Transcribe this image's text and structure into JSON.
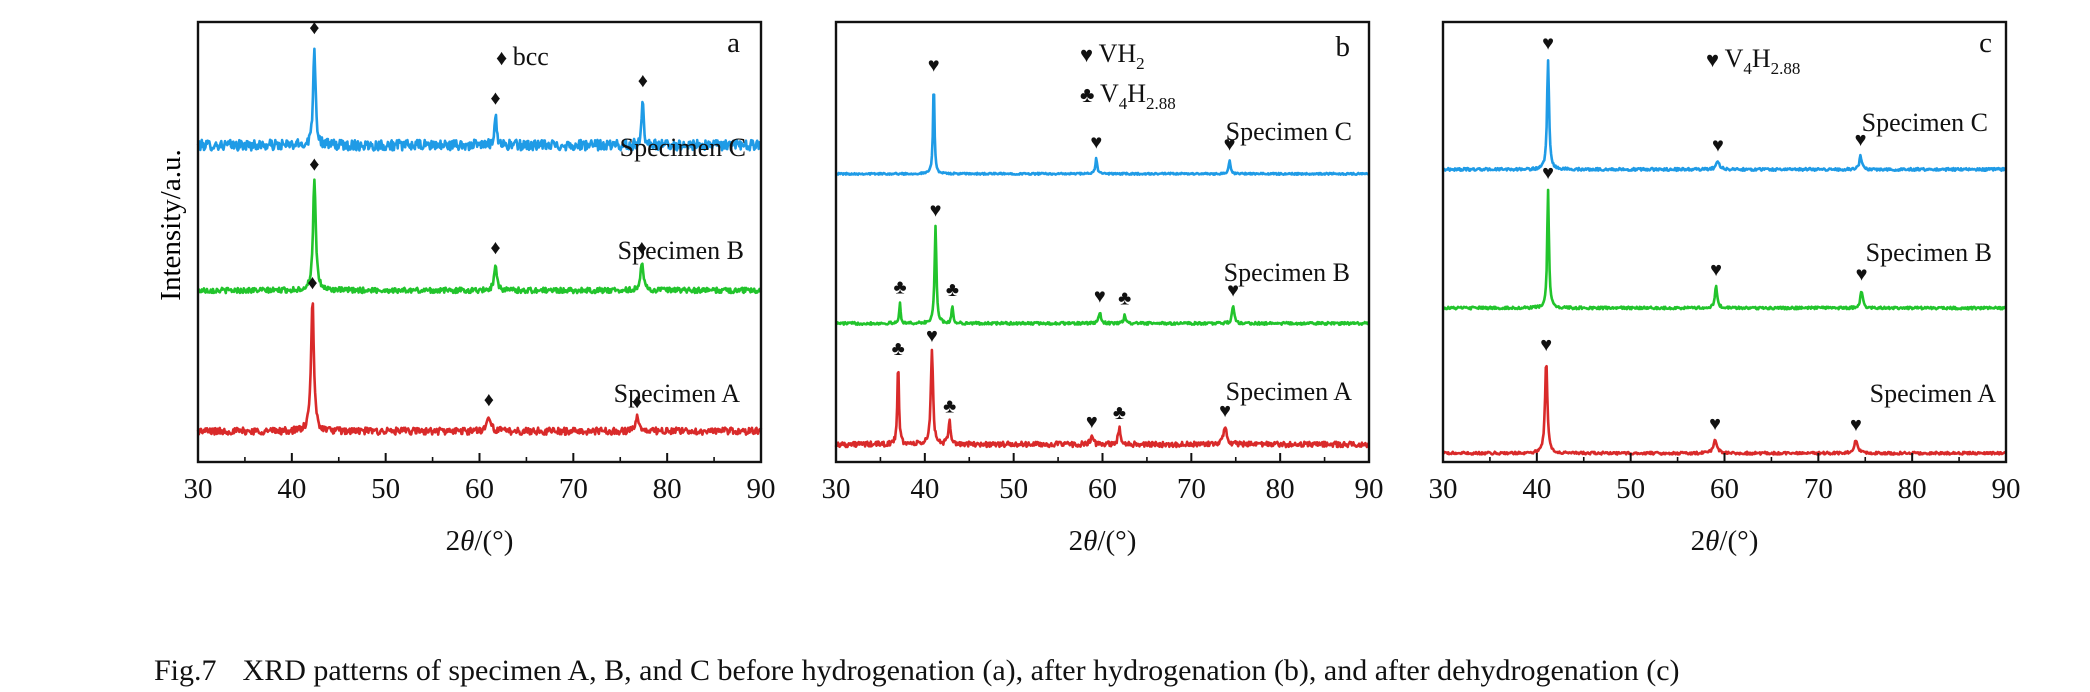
{
  "figure": {
    "ylabel": "Intensity/a.u.",
    "caption_number": "Fig.7",
    "caption_text": "XRD patterns of specimen A, B, and C before hydrogenation (a), after hydrogenation (b), and after dehydrogenation (c)"
  },
  "colors": {
    "A": "#d92a2a",
    "B": "#22c42c",
    "C": "#1f9be6",
    "axis": "#111111"
  },
  "chart_data": [
    {
      "type": "line",
      "panel_label": "a",
      "xlabel": "2θ/(°)",
      "ylabel": "Intensity/a.u.",
      "xlim": [
        30,
        90
      ],
      "xticks": [
        30,
        40,
        50,
        60,
        70,
        80,
        90
      ],
      "ylim": [
        0,
        1
      ],
      "legend": [
        {
          "symbol": "♦",
          "text": "bcc"
        }
      ],
      "series": [
        {
          "name": "Specimen C",
          "color": "#1f9be6",
          "baseline": 0.72,
          "noise": 0.012,
          "peaks": [
            {
              "x": 42.4,
              "height": 0.23,
              "width": 0.3,
              "marker": "♦"
            },
            {
              "x": 61.7,
              "height": 0.07,
              "width": 0.3,
              "marker": "♦"
            },
            {
              "x": 77.4,
              "height": 0.11,
              "width": 0.25,
              "marker": "♦"
            }
          ]
        },
        {
          "name": "Specimen B",
          "color": "#22c42c",
          "baseline": 0.39,
          "noise": 0.006,
          "peaks": [
            {
              "x": 42.4,
              "height": 0.25,
              "width": 0.35,
              "marker": "♦"
            },
            {
              "x": 61.7,
              "height": 0.06,
              "width": 0.35,
              "marker": "♦"
            },
            {
              "x": 77.3,
              "height": 0.06,
              "width": 0.4,
              "marker": "♦"
            }
          ]
        },
        {
          "name": "Specimen A",
          "color": "#d92a2a",
          "baseline": 0.07,
          "noise": 0.008,
          "peaks": [
            {
              "x": 42.2,
              "height": 0.3,
              "width": 0.35,
              "marker": "♦"
            },
            {
              "x": 61.0,
              "height": 0.035,
              "width": 0.5,
              "marker": "♦"
            },
            {
              "x": 76.8,
              "height": 0.03,
              "width": 0.5,
              "marker": "♦"
            }
          ]
        }
      ]
    },
    {
      "type": "line",
      "panel_label": "b",
      "xlabel": "2θ/(°)",
      "ylabel": "",
      "xlim": [
        30,
        90
      ],
      "xticks": [
        30,
        40,
        50,
        60,
        70,
        80,
        90
      ],
      "ylim": [
        0,
        1
      ],
      "legend": [
        {
          "symbol": "♥",
          "text": "VH",
          "sub": "2",
          "text2": "",
          "sub2": ""
        },
        {
          "symbol": "♣",
          "text": "V",
          "sub": "4",
          "text2": "H",
          "sub2": "2.88"
        }
      ],
      "series": [
        {
          "name": "Specimen C",
          "color": "#1f9be6",
          "baseline": 0.655,
          "noise": 0.002,
          "peaks": [
            {
              "x": 41.0,
              "height": 0.21,
              "width": 0.2,
              "marker": "♥"
            },
            {
              "x": 59.3,
              "height": 0.035,
              "width": 0.25,
              "marker": "♥"
            },
            {
              "x": 74.3,
              "height": 0.03,
              "width": 0.25,
              "marker": "♥"
            }
          ]
        },
        {
          "name": "Specimen B",
          "color": "#22c42c",
          "baseline": 0.315,
          "noise": 0.003,
          "peaks": [
            {
              "x": 37.2,
              "height": 0.045,
              "width": 0.2,
              "marker": "♣"
            },
            {
              "x": 41.2,
              "height": 0.22,
              "width": 0.25,
              "marker": "♥"
            },
            {
              "x": 43.1,
              "height": 0.04,
              "width": 0.2,
              "marker": "♣"
            },
            {
              "x": 59.7,
              "height": 0.025,
              "width": 0.3,
              "marker": "♥"
            },
            {
              "x": 62.5,
              "height": 0.02,
              "width": 0.25,
              "marker": "♣"
            },
            {
              "x": 74.7,
              "height": 0.038,
              "width": 0.3,
              "marker": "♥"
            }
          ]
        },
        {
          "name": "Specimen A",
          "color": "#d92a2a",
          "baseline": 0.04,
          "noise": 0.006,
          "peaks": [
            {
              "x": 37.0,
              "height": 0.18,
              "width": 0.22,
              "marker": "♣"
            },
            {
              "x": 40.8,
              "height": 0.21,
              "width": 0.3,
              "marker": "♥"
            },
            {
              "x": 42.8,
              "height": 0.05,
              "width": 0.3,
              "marker": "♣"
            },
            {
              "x": 58.8,
              "height": 0.015,
              "width": 0.4,
              "marker": "♥"
            },
            {
              "x": 61.9,
              "height": 0.035,
              "width": 0.35,
              "marker": "♣"
            },
            {
              "x": 73.8,
              "height": 0.04,
              "width": 0.45,
              "marker": "♥"
            }
          ]
        }
      ]
    },
    {
      "type": "line",
      "panel_label": "c",
      "xlabel": "2θ/(°)",
      "ylabel": "",
      "xlim": [
        30,
        90
      ],
      "xticks": [
        30,
        40,
        50,
        60,
        70,
        80,
        90
      ],
      "ylim": [
        0,
        1
      ],
      "legend": [
        {
          "symbol": "♥",
          "text": "V",
          "sub": "4",
          "text2": "H",
          "sub2": "2.88"
        }
      ],
      "series": [
        {
          "name": "Specimen C",
          "color": "#1f9be6",
          "baseline": 0.665,
          "noise": 0.003,
          "peaks": [
            {
              "x": 41.2,
              "height": 0.25,
              "width": 0.25,
              "marker": "♥"
            },
            {
              "x": 59.3,
              "height": 0.018,
              "width": 0.45,
              "marker": "♥"
            },
            {
              "x": 74.5,
              "height": 0.03,
              "width": 0.3,
              "marker": "♥"
            }
          ]
        },
        {
          "name": "Specimen B",
          "color": "#22c42c",
          "baseline": 0.35,
          "noise": 0.003,
          "peaks": [
            {
              "x": 41.2,
              "height": 0.27,
              "width": 0.22,
              "marker": "♥"
            },
            {
              "x": 59.1,
              "height": 0.05,
              "width": 0.3,
              "marker": "♥"
            },
            {
              "x": 74.6,
              "height": 0.04,
              "width": 0.3,
              "marker": "♥"
            }
          ]
        },
        {
          "name": "Specimen A",
          "color": "#d92a2a",
          "baseline": 0.02,
          "noise": 0.003,
          "peaks": [
            {
              "x": 41.0,
              "height": 0.21,
              "width": 0.3,
              "marker": "♥"
            },
            {
              "x": 59.0,
              "height": 0.03,
              "width": 0.45,
              "marker": "♥"
            },
            {
              "x": 74.0,
              "height": 0.028,
              "width": 0.45,
              "marker": "♥"
            }
          ]
        }
      ]
    }
  ]
}
